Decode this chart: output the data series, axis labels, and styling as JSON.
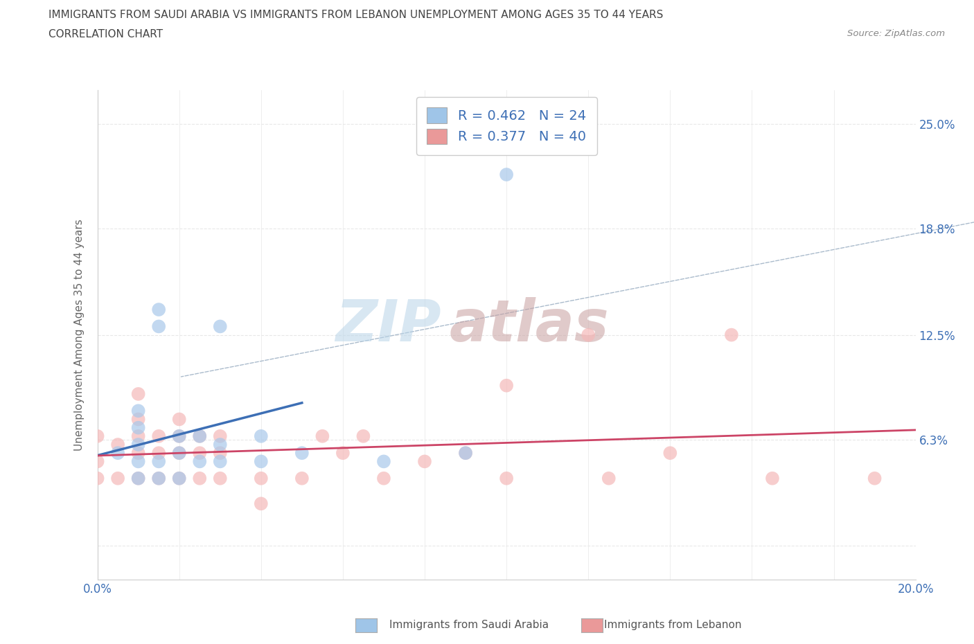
{
  "title_line1": "IMMIGRANTS FROM SAUDI ARABIA VS IMMIGRANTS FROM LEBANON UNEMPLOYMENT AMONG AGES 35 TO 44 YEARS",
  "title_line2": "CORRELATION CHART",
  "source_text": "Source: ZipAtlas.com",
  "ylabel": "Unemployment Among Ages 35 to 44 years",
  "xlim": [
    0.0,
    0.2
  ],
  "ylim": [
    -0.02,
    0.27
  ],
  "ytick_positions": [
    0.0,
    0.063,
    0.125,
    0.188,
    0.25
  ],
  "ytick_labels": [
    "",
    "6.3%",
    "12.5%",
    "18.8%",
    "25.0%"
  ],
  "saudi_color": "#9fc5e8",
  "lebanon_color": "#ea9999",
  "saudi_color_fill": "#a8c8ea",
  "lebanon_color_fill": "#f4b8b8",
  "trend_saudi_color": "#3d6fb5",
  "trend_lebanon_color": "#cc4466",
  "R_saudi": 0.462,
  "N_saudi": 24,
  "R_lebanon": 0.377,
  "N_lebanon": 40,
  "watermark_zip": "ZIP",
  "watermark_atlas": "atlas",
  "watermark_color_zip": "#b8d4e8",
  "watermark_color_atlas": "#c8a0a0",
  "saudi_x": [
    0.005,
    0.01,
    0.01,
    0.01,
    0.01,
    0.01,
    0.015,
    0.015,
    0.015,
    0.015,
    0.02,
    0.02,
    0.02,
    0.025,
    0.025,
    0.03,
    0.03,
    0.03,
    0.04,
    0.04,
    0.05,
    0.07,
    0.09,
    0.1
  ],
  "saudi_y": [
    0.055,
    0.04,
    0.05,
    0.06,
    0.07,
    0.08,
    0.04,
    0.05,
    0.13,
    0.14,
    0.04,
    0.055,
    0.065,
    0.05,
    0.065,
    0.05,
    0.06,
    0.13,
    0.05,
    0.065,
    0.055,
    0.05,
    0.055,
    0.22
  ],
  "lebanon_x": [
    0.0,
    0.0,
    0.0,
    0.005,
    0.005,
    0.01,
    0.01,
    0.01,
    0.01,
    0.01,
    0.015,
    0.015,
    0.015,
    0.02,
    0.02,
    0.02,
    0.02,
    0.025,
    0.025,
    0.025,
    0.03,
    0.03,
    0.03,
    0.04,
    0.04,
    0.05,
    0.055,
    0.06,
    0.065,
    0.07,
    0.08,
    0.09,
    0.1,
    0.1,
    0.12,
    0.125,
    0.14,
    0.155,
    0.165,
    0.19
  ],
  "lebanon_y": [
    0.04,
    0.05,
    0.065,
    0.04,
    0.06,
    0.04,
    0.055,
    0.065,
    0.075,
    0.09,
    0.04,
    0.055,
    0.065,
    0.04,
    0.055,
    0.065,
    0.075,
    0.04,
    0.055,
    0.065,
    0.04,
    0.055,
    0.065,
    0.025,
    0.04,
    0.04,
    0.065,
    0.055,
    0.065,
    0.04,
    0.05,
    0.055,
    0.04,
    0.095,
    0.125,
    0.04,
    0.055,
    0.125,
    0.04,
    0.04
  ],
  "background_color": "#ffffff",
  "grid_color": "#e8e8e8",
  "legend_text_color": "#3d6fb5",
  "axis_label_color": "#3d6fb5",
  "title_color": "#444444"
}
